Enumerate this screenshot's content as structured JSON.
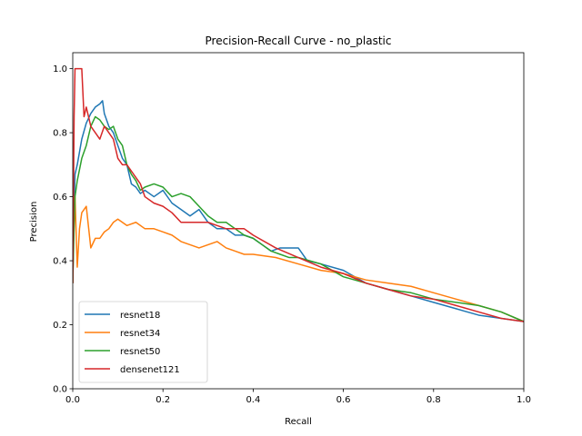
{
  "chart_data": {
    "type": "line",
    "title": "Precision-Recall Curve - no_plastic",
    "xlabel": "Recall",
    "ylabel": "Precision",
    "xlim": [
      0.0,
      1.0
    ],
    "ylim": [
      0.0,
      1.05
    ],
    "xticks": [
      "0.0",
      "0.2",
      "0.4",
      "0.6",
      "0.8",
      "1.0"
    ],
    "yticks": [
      "0.0",
      "0.2",
      "0.4",
      "0.6",
      "0.8",
      "1.0"
    ],
    "grid": false,
    "legend_position": "lower-left",
    "series": [
      {
        "name": "resnet18",
        "color": "#1f77b4",
        "x": [
          0.0,
          0.002,
          0.005,
          0.01,
          0.02,
          0.03,
          0.04,
          0.05,
          0.06,
          0.066,
          0.07,
          0.08,
          0.09,
          0.1,
          0.11,
          0.12,
          0.13,
          0.14,
          0.15,
          0.16,
          0.18,
          0.2,
          0.22,
          0.24,
          0.26,
          0.28,
          0.3,
          0.32,
          0.34,
          0.36,
          0.38,
          0.4,
          0.42,
          0.44,
          0.46,
          0.48,
          0.5,
          0.52,
          0.55,
          0.6,
          0.65,
          0.7,
          0.75,
          0.8,
          0.85,
          0.9,
          0.95,
          1.0
        ],
        "y": [
          0.33,
          0.5,
          0.67,
          0.7,
          0.78,
          0.83,
          0.86,
          0.88,
          0.89,
          0.9,
          0.86,
          0.82,
          0.8,
          0.76,
          0.72,
          0.7,
          0.64,
          0.63,
          0.61,
          0.62,
          0.6,
          0.62,
          0.58,
          0.56,
          0.54,
          0.56,
          0.52,
          0.5,
          0.5,
          0.48,
          0.48,
          0.47,
          0.45,
          0.43,
          0.44,
          0.44,
          0.44,
          0.4,
          0.39,
          0.37,
          0.33,
          0.31,
          0.29,
          0.27,
          0.25,
          0.23,
          0.22,
          0.21
        ]
      },
      {
        "name": "resnet34",
        "color": "#ff7f0e",
        "x": [
          0.0,
          0.002,
          0.005,
          0.01,
          0.015,
          0.02,
          0.03,
          0.04,
          0.05,
          0.06,
          0.07,
          0.08,
          0.09,
          0.1,
          0.11,
          0.12,
          0.14,
          0.16,
          0.18,
          0.2,
          0.22,
          0.24,
          0.26,
          0.28,
          0.3,
          0.32,
          0.34,
          0.36,
          0.38,
          0.4,
          0.45,
          0.5,
          0.55,
          0.6,
          0.65,
          0.7,
          0.75,
          0.8,
          0.85,
          0.9,
          0.95,
          1.0
        ],
        "y": [
          0.33,
          0.5,
          0.6,
          0.38,
          0.5,
          0.55,
          0.57,
          0.44,
          0.47,
          0.47,
          0.49,
          0.5,
          0.52,
          0.53,
          0.52,
          0.51,
          0.52,
          0.5,
          0.5,
          0.49,
          0.48,
          0.46,
          0.45,
          0.44,
          0.45,
          0.46,
          0.44,
          0.43,
          0.42,
          0.42,
          0.41,
          0.39,
          0.37,
          0.36,
          0.34,
          0.33,
          0.32,
          0.3,
          0.28,
          0.26,
          0.24,
          0.21
        ]
      },
      {
        "name": "resnet50",
        "color": "#2ca02c",
        "x": [
          0.0,
          0.002,
          0.005,
          0.01,
          0.02,
          0.03,
          0.04,
          0.05,
          0.06,
          0.07,
          0.08,
          0.09,
          0.1,
          0.11,
          0.12,
          0.13,
          0.14,
          0.15,
          0.16,
          0.18,
          0.2,
          0.22,
          0.24,
          0.26,
          0.28,
          0.3,
          0.32,
          0.34,
          0.36,
          0.38,
          0.4,
          0.42,
          0.44,
          0.46,
          0.48,
          0.5,
          0.55,
          0.6,
          0.65,
          0.7,
          0.75,
          0.8,
          0.85,
          0.9,
          0.95,
          1.0
        ],
        "y": [
          0.33,
          0.45,
          0.6,
          0.65,
          0.72,
          0.76,
          0.82,
          0.85,
          0.84,
          0.82,
          0.81,
          0.82,
          0.78,
          0.76,
          0.7,
          0.67,
          0.65,
          0.62,
          0.63,
          0.64,
          0.63,
          0.6,
          0.61,
          0.6,
          0.57,
          0.54,
          0.52,
          0.52,
          0.5,
          0.48,
          0.47,
          0.45,
          0.43,
          0.42,
          0.41,
          0.41,
          0.39,
          0.35,
          0.33,
          0.31,
          0.3,
          0.28,
          0.27,
          0.26,
          0.24,
          0.21
        ]
      },
      {
        "name": "densenet121",
        "color": "#d62728",
        "x": [
          0.0,
          0.001,
          0.003,
          0.005,
          0.02,
          0.025,
          0.03,
          0.04,
          0.05,
          0.06,
          0.07,
          0.08,
          0.09,
          0.1,
          0.11,
          0.12,
          0.13,
          0.14,
          0.15,
          0.16,
          0.18,
          0.2,
          0.22,
          0.24,
          0.26,
          0.28,
          0.3,
          0.32,
          0.34,
          0.36,
          0.38,
          0.4,
          0.45,
          0.5,
          0.55,
          0.6,
          0.65,
          0.7,
          0.75,
          0.8,
          0.85,
          0.9,
          0.95,
          1.0
        ],
        "y": [
          0.33,
          0.5,
          0.85,
          1.0,
          1.0,
          0.85,
          0.88,
          0.82,
          0.8,
          0.78,
          0.82,
          0.8,
          0.78,
          0.72,
          0.7,
          0.7,
          0.68,
          0.66,
          0.64,
          0.6,
          0.58,
          0.57,
          0.55,
          0.52,
          0.52,
          0.52,
          0.52,
          0.51,
          0.5,
          0.5,
          0.5,
          0.48,
          0.44,
          0.41,
          0.38,
          0.36,
          0.33,
          0.31,
          0.29,
          0.28,
          0.26,
          0.24,
          0.22,
          0.21
        ]
      }
    ]
  }
}
